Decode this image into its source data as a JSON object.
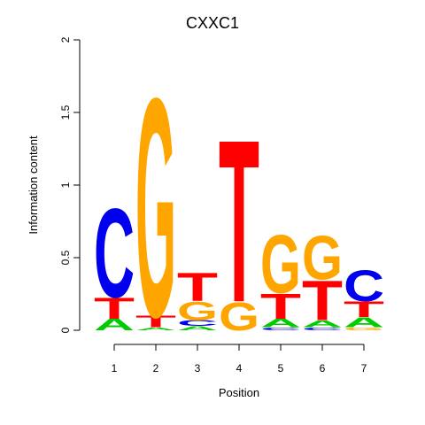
{
  "chart_data": {
    "type": "sequence-logo",
    "title": "CXXC1",
    "xlabel": "Position",
    "ylabel": "Information content",
    "ylim": [
      0,
      2
    ],
    "yticks": [
      "0",
      "0.5",
      "1",
      "1.5",
      "2"
    ],
    "ytick_values": [
      0,
      0.5,
      1,
      1.5,
      2
    ],
    "xticks": [
      "1",
      "2",
      "3",
      "4",
      "5",
      "6",
      "7"
    ],
    "colors": {
      "A": "#00cc00",
      "C": "#0000ee",
      "G": "#ffa500",
      "T": "#ff0000"
    },
    "positions": [
      {
        "position": "1",
        "stack": [
          {
            "letter": "A",
            "height": 0.08
          },
          {
            "letter": "T",
            "height": 0.15
          },
          {
            "letter": "C",
            "height": 0.63
          }
        ]
      },
      {
        "position": "2",
        "stack": [
          {
            "letter": "A",
            "height": 0.02
          },
          {
            "letter": "T",
            "height": 0.08
          },
          {
            "letter": "G",
            "height": 1.55
          }
        ]
      },
      {
        "position": "3",
        "stack": [
          {
            "letter": "A",
            "height": 0.03
          },
          {
            "letter": "C",
            "height": 0.04
          },
          {
            "letter": "G",
            "height": 0.13
          },
          {
            "letter": "T",
            "height": 0.2
          }
        ]
      },
      {
        "position": "4",
        "stack": [
          {
            "letter": "G",
            "height": 0.2
          },
          {
            "letter": "T",
            "height": 1.15
          }
        ]
      },
      {
        "position": "5",
        "stack": [
          {
            "letter": "C",
            "height": 0.02
          },
          {
            "letter": "A",
            "height": 0.06
          },
          {
            "letter": "T",
            "height": 0.18
          },
          {
            "letter": "G",
            "height": 0.41
          }
        ]
      },
      {
        "position": "6",
        "stack": [
          {
            "letter": "C",
            "height": 0.02
          },
          {
            "letter": "A",
            "height": 0.05
          },
          {
            "letter": "T",
            "height": 0.28
          },
          {
            "letter": "G",
            "height": 0.31
          }
        ]
      },
      {
        "position": "7",
        "stack": [
          {
            "letter": "G",
            "height": 0.02
          },
          {
            "letter": "A",
            "height": 0.07
          },
          {
            "letter": "T",
            "height": 0.11
          },
          {
            "letter": "C",
            "height": 0.22
          }
        ]
      }
    ]
  }
}
